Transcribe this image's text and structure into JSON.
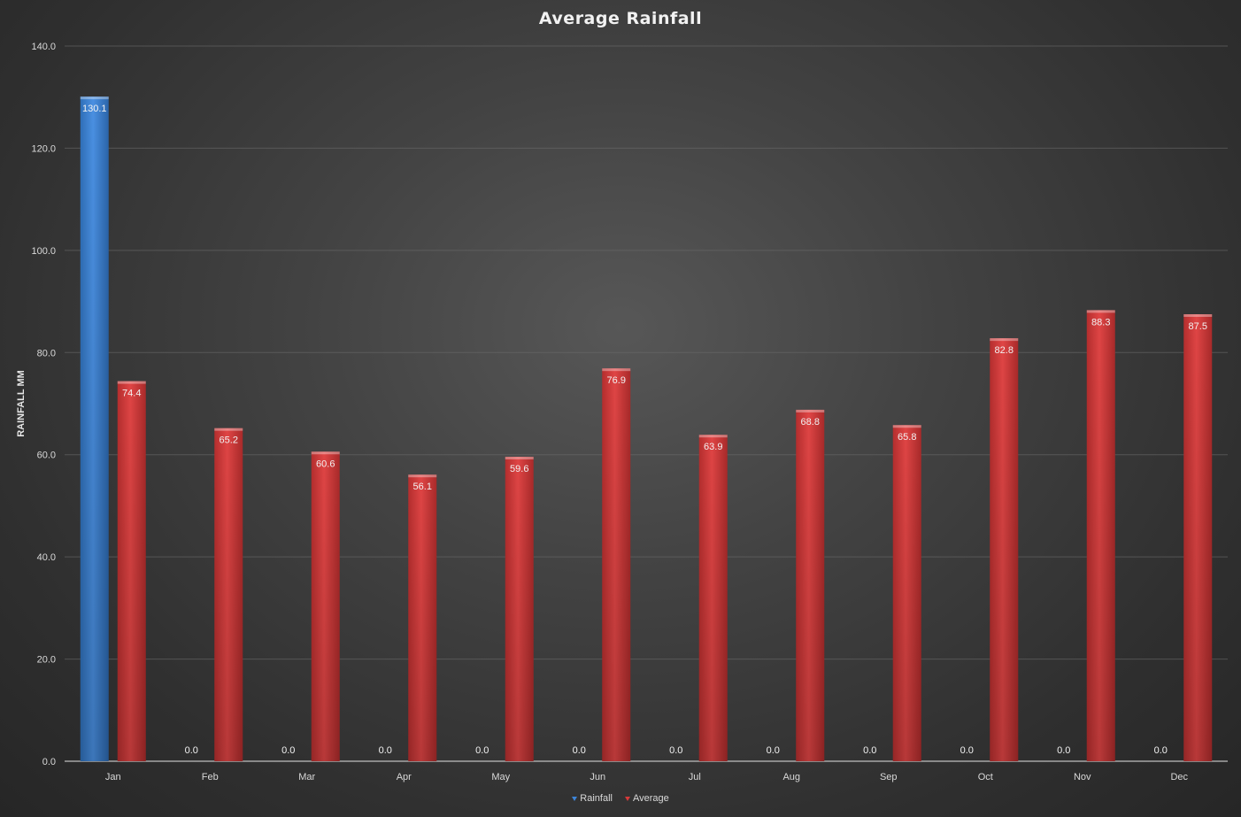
{
  "chart_data": {
    "type": "bar",
    "title": "Average Rainfall",
    "xlabel": "",
    "ylabel": "RAINFALL MM",
    "ylim": [
      0,
      140
    ],
    "yticks": [
      "0.0",
      "20.0",
      "40.0",
      "60.0",
      "80.0",
      "100.0",
      "120.0",
      "140.0"
    ],
    "grid": true,
    "legend_position": "bottom",
    "categories": [
      "Jan",
      "Feb",
      "Mar",
      "Apr",
      "May",
      "Jun",
      "Jul",
      "Aug",
      "Sep",
      "Oct",
      "Nov",
      "Dec"
    ],
    "series": [
      {
        "name": "Rainfall",
        "color": "#3d85d8",
        "values": [
          130.1,
          0.0,
          0.0,
          0.0,
          0.0,
          0.0,
          0.0,
          0.0,
          0.0,
          0.0,
          0.0,
          0.0
        ],
        "labels": [
          "130.1",
          "0.0",
          "0.0",
          "0.0",
          "0.0",
          "0.0",
          "0.0",
          "0.0",
          "0.0",
          "0.0",
          "0.0",
          "0.0"
        ]
      },
      {
        "name": "Average",
        "color": "#d63a3a",
        "values": [
          74.4,
          65.2,
          60.6,
          56.1,
          59.6,
          76.9,
          63.9,
          68.8,
          65.8,
          82.8,
          88.3,
          87.5
        ],
        "labels": [
          "74.4",
          "65.2",
          "60.6",
          "56.1",
          "59.6",
          "76.9",
          "63.9",
          "68.8",
          "65.8",
          "82.8",
          "88.3",
          "87.5"
        ]
      }
    ]
  }
}
